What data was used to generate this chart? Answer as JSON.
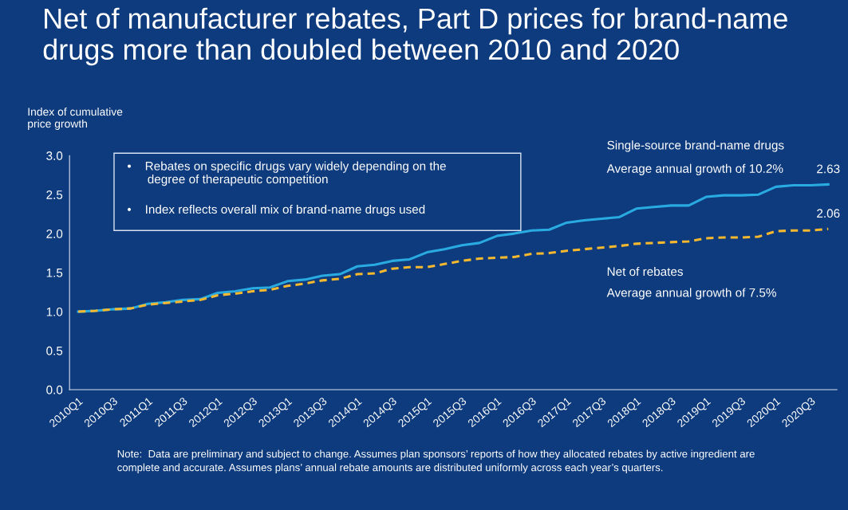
{
  "chart_data": {
    "type": "line",
    "title": "Net of manufacturer rebates, Part D prices for brand-name drugs more than doubled between 2010 and 2020",
    "ylabel": "Index of cumulative\nprice growth",
    "categories": [
      "2010Q1",
      null,
      "2010Q3",
      null,
      "2011Q1",
      null,
      "2011Q3",
      null,
      "2012Q1",
      null,
      "2012Q3",
      null,
      "2013Q1",
      null,
      "2013Q3",
      null,
      "2014Q1",
      null,
      "2014Q3",
      null,
      "2015Q1",
      null,
      "2015Q3",
      null,
      "2016Q1",
      null,
      "2016Q3",
      null,
      "2017Q1",
      null,
      "2017Q3",
      null,
      "2018Q1",
      null,
      "2018Q3",
      null,
      "2019Q1",
      null,
      "2019Q3",
      null,
      "2020Q1",
      null,
      "2020Q3",
      null
    ],
    "series": [
      {
        "name": "Single-source brand-name drugs",
        "color": "#29abe2",
        "line_style": "solid",
        "values": [
          1.0,
          1.01,
          1.03,
          1.04,
          1.1,
          1.12,
          1.15,
          1.16,
          1.24,
          1.26,
          1.3,
          1.31,
          1.39,
          1.41,
          1.46,
          1.48,
          1.58,
          1.6,
          1.65,
          1.67,
          1.76,
          1.8,
          1.85,
          1.88,
          1.97,
          2.0,
          2.04,
          2.05,
          2.14,
          2.17,
          2.19,
          2.21,
          2.32,
          2.34,
          2.36,
          2.36,
          2.47,
          2.49,
          2.49,
          2.5,
          2.6,
          2.62,
          2.62,
          2.63
        ],
        "value_labels": [
          null,
          null,
          null,
          null,
          null,
          null,
          null,
          null,
          null,
          null,
          null,
          null,
          null,
          null,
          null,
          null,
          null,
          null,
          null,
          null,
          null,
          null,
          null,
          null,
          null,
          null,
          null,
          null,
          null,
          null,
          null,
          null,
          null,
          null,
          null,
          null,
          null,
          null,
          null,
          null,
          null,
          null,
          null,
          "2.63"
        ]
      },
      {
        "name": "Net of rebates",
        "color": "#f5b82e",
        "line_style": "dashed",
        "values": [
          1.0,
          1.01,
          1.03,
          1.04,
          1.09,
          1.11,
          1.13,
          1.15,
          1.21,
          1.23,
          1.26,
          1.28,
          1.33,
          1.36,
          1.4,
          1.42,
          1.48,
          1.49,
          1.55,
          1.57,
          1.57,
          1.61,
          1.65,
          1.68,
          1.69,
          1.7,
          1.74,
          1.75,
          1.78,
          1.8,
          1.82,
          1.84,
          1.87,
          1.88,
          1.89,
          1.9,
          1.94,
          1.95,
          1.95,
          1.96,
          2.03,
          2.04,
          2.04,
          2.06
        ],
        "value_labels": [
          null,
          null,
          null,
          null,
          null,
          null,
          null,
          null,
          null,
          null,
          null,
          null,
          null,
          null,
          null,
          null,
          null,
          null,
          null,
          null,
          null,
          null,
          null,
          null,
          null,
          null,
          null,
          null,
          null,
          null,
          null,
          null,
          null,
          null,
          null,
          null,
          null,
          null,
          null,
          null,
          null,
          null,
          null,
          "2.06"
        ]
      }
    ],
    "ylim": [
      0,
      3.0
    ],
    "yticks": [
      {
        "value": 0,
        "label": "0.0"
      },
      {
        "value": 0.5,
        "label": "0.5"
      },
      {
        "value": 1.0,
        "label": "1.0"
      },
      {
        "value": 1.5,
        "label": "1.5"
      },
      {
        "value": 2.0,
        "label": "2.0"
      },
      {
        "value": 2.5,
        "label": "2.5"
      },
      {
        "value": 3.0,
        "label": "3.0"
      }
    ],
    "grid": false,
    "legend": false,
    "annotations": [
      "•    Rebates on specific drugs vary widely depending on the\n      degree of therapeutic competition",
      "•    Index reflects overall mix of brand-name drugs used",
      "Average annual growth of 10.2%",
      "Average annual growth of 7.5%",
      "Note:  Data are preliminary and subject to change. Assumes plan sponsors’ reports of how they allocated rebates by active ingredient are\ncomplete and accurate. Assumes plans’ annual rebate amounts are distributed uniformly across each year’s quarters."
    ]
  }
}
